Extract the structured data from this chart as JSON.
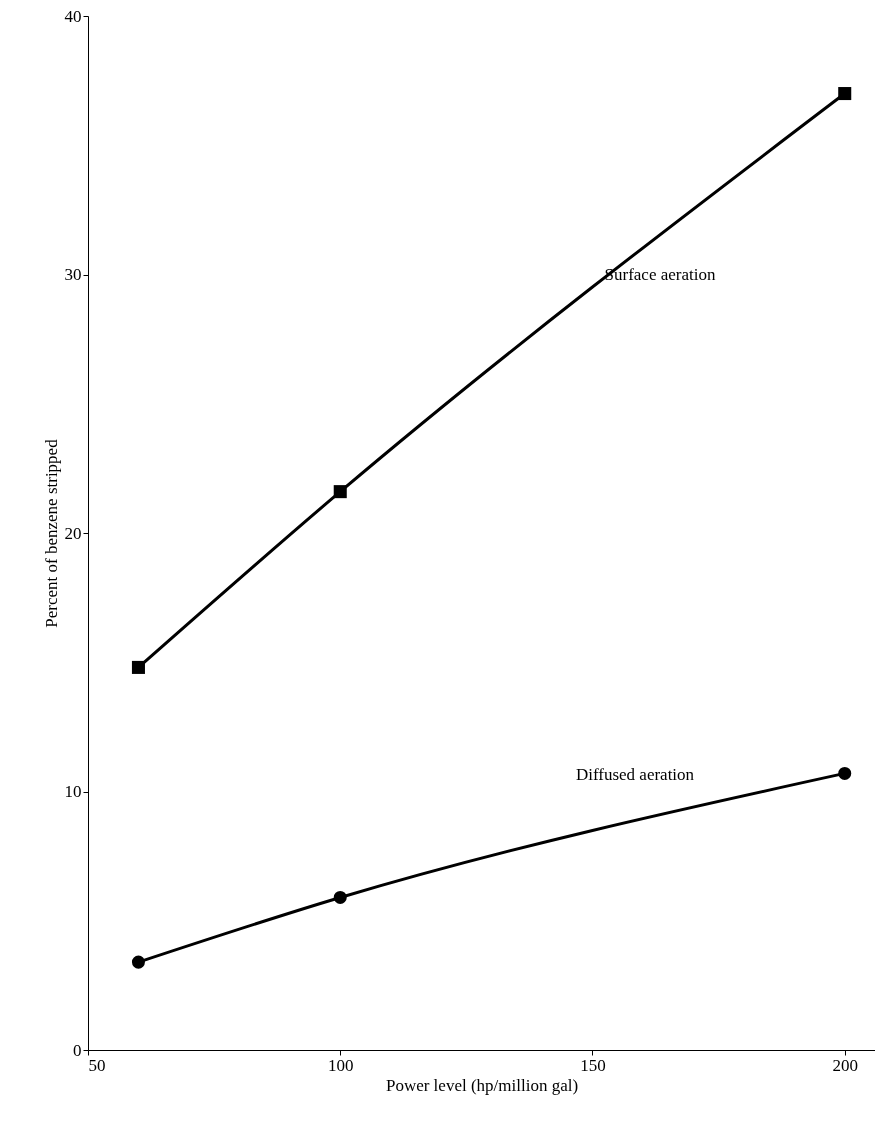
{
  "chart_data": {
    "type": "line",
    "xlabel": "Power level (hp/million gal)",
    "ylabel": "Percent of benzene stripped",
    "x": [
      60,
      100,
      200
    ],
    "series": [
      {
        "name": "Surface aeration",
        "color": "#000000",
        "marker": "square",
        "values": [
          14.8,
          21.6,
          37.0
        ]
      },
      {
        "name": "Diffused aeration",
        "color": "#000000",
        "marker": "circle",
        "values": [
          3.4,
          5.9,
          10.7
        ]
      }
    ],
    "xlim": [
      50,
      206
    ],
    "xticks": [
      50,
      100,
      150,
      200
    ],
    "ylim": [
      0,
      40
    ],
    "yticks": [
      0,
      10,
      20,
      30,
      40
    ],
    "grid": false,
    "line_style": "solid"
  }
}
